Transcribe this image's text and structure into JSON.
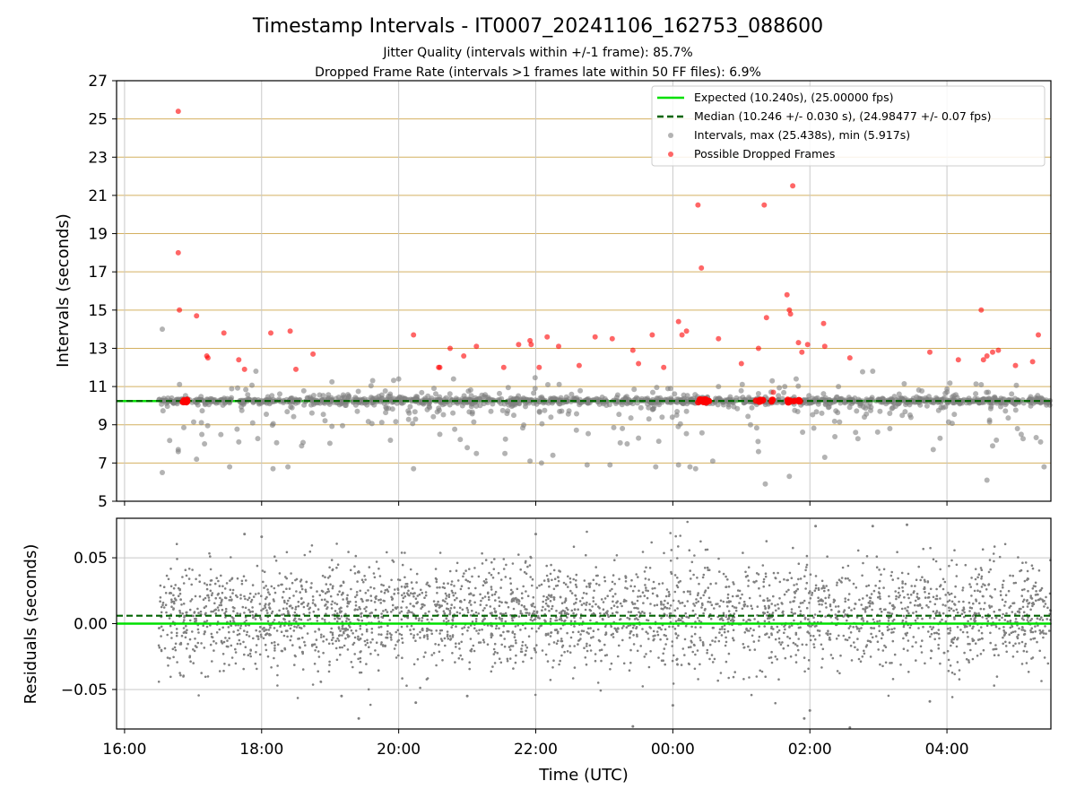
{
  "chart_data": [
    {
      "type": "scatter",
      "title": "Timestamp Intervals - IT0007_20241106_162753_088600",
      "subtitle_lines": [
        "Jitter Quality (intervals within +/-1 frame): 85.7%",
        "Dropped Frame Rate (intervals >1 frames late within 50 FF files): 6.9%"
      ],
      "xlabel": "",
      "ylabel": "Intervals (seconds)",
      "xlim": [
        "15:53",
        "05:31"
      ],
      "ylim": [
        5,
        27
      ],
      "yticks": [
        5,
        7,
        9,
        11,
        13,
        15,
        17,
        19,
        21,
        23,
        25,
        27
      ],
      "xticks": [
        "16:00",
        "18:00",
        "20:00",
        "22:00",
        "00:00",
        "02:00",
        "04:00"
      ],
      "grid": true,
      "legend_position": "top-right",
      "colors": {
        "expected": "#00e000",
        "median": "#006400",
        "intervals": "#808080",
        "dropped": "#ff0000",
        "hgrid": "#d4b060",
        "vgrid": "#c8c8c8"
      },
      "series": [
        {
          "name": "Expected (10.240s), (25.00000 fps)",
          "kind": "hline",
          "y": 10.24
        },
        {
          "name": "Median (10.246 +/- 0.030 s), (24.98477 +/- 0.07 fps)",
          "kind": "hline-dashed",
          "y": 10.246
        },
        {
          "name": "Intervals, max (25.438s), min (5.917s)",
          "kind": "points",
          "max": 25.438,
          "min": 5.917,
          "notable_points": [
            [
              "16:33",
              14.0
            ],
            [
              "16:33",
              6.5
            ],
            [
              "16:47",
              7.6
            ],
            [
              "16:47",
              7.7
            ],
            [
              "17:03",
              7.2
            ],
            [
              "17:10",
              8.0
            ],
            [
              "17:32",
              6.8
            ],
            [
              "17:40",
              8.1
            ],
            [
              "17:55",
              11.8
            ],
            [
              "18:10",
              6.7
            ],
            [
              "18:23",
              6.8
            ],
            [
              "18:35",
              7.9
            ],
            [
              "20:00",
              11.4
            ],
            [
              "20:13",
              6.7
            ],
            [
              "20:36",
              8.5
            ],
            [
              "20:48",
              11.4
            ],
            [
              "21:00",
              7.8
            ],
            [
              "21:08",
              7.5
            ],
            [
              "21:33",
              7.5
            ],
            [
              "21:55",
              7.1
            ],
            [
              "22:05",
              7.0
            ],
            [
              "22:15",
              7.4
            ],
            [
              "22:45",
              6.9
            ],
            [
              "23:05",
              6.9
            ],
            [
              "23:20",
              8.0
            ],
            [
              "23:30",
              8.3
            ],
            [
              "23:45",
              6.8
            ],
            [
              "23:58",
              10.9
            ],
            [
              "00:05",
              6.9
            ],
            [
              "00:15",
              6.8
            ],
            [
              "00:20",
              6.7
            ],
            [
              "00:35",
              7.1
            ],
            [
              "00:40",
              11.0
            ],
            [
              "01:08",
              9.0
            ],
            [
              "01:15",
              7.6
            ],
            [
              "01:21",
              5.9
            ],
            [
              "01:27",
              11.3
            ],
            [
              "01:38",
              11.0
            ],
            [
              "01:42",
              6.3
            ],
            [
              "01:48",
              11.4
            ],
            [
              "02:13",
              7.3
            ],
            [
              "02:25",
              11.0
            ],
            [
              "02:40",
              8.6
            ],
            [
              "02:55",
              11.8
            ],
            [
              "03:10",
              8.8
            ],
            [
              "03:48",
              7.7
            ],
            [
              "04:30",
              11.1
            ],
            [
              "04:35",
              6.1
            ],
            [
              "04:40",
              7.9
            ],
            [
              "05:05",
              8.5
            ],
            [
              "05:22",
              8.1
            ],
            [
              "05:25",
              6.8
            ]
          ]
        },
        {
          "name": "Possible Dropped Frames",
          "kind": "points",
          "values": [
            [
              "16:47",
              25.4
            ],
            [
              "16:47",
              18.0
            ],
            [
              "16:48",
              15.0
            ],
            [
              "17:03",
              14.7
            ],
            [
              "17:12",
              12.6
            ],
            [
              "17:13",
              12.5
            ],
            [
              "17:27",
              13.8
            ],
            [
              "17:40",
              12.4
            ],
            [
              "17:45",
              11.9
            ],
            [
              "18:08",
              13.8
            ],
            [
              "18:25",
              13.9
            ],
            [
              "18:30",
              11.9
            ],
            [
              "18:45",
              12.7
            ],
            [
              "20:13",
              13.7
            ],
            [
              "20:35",
              12.0
            ],
            [
              "20:36",
              12.0
            ],
            [
              "20:45",
              13.0
            ],
            [
              "20:57",
              12.6
            ],
            [
              "21:08",
              13.1
            ],
            [
              "21:32",
              12.0
            ],
            [
              "21:45",
              13.2
            ],
            [
              "21:55",
              13.4
            ],
            [
              "21:56",
              13.2
            ],
            [
              "22:03",
              12.0
            ],
            [
              "22:10",
              13.6
            ],
            [
              "22:20",
              13.1
            ],
            [
              "22:38",
              12.1
            ],
            [
              "22:52",
              13.6
            ],
            [
              "23:07",
              13.5
            ],
            [
              "23:25",
              12.9
            ],
            [
              "23:30",
              12.2
            ],
            [
              "23:42",
              13.7
            ],
            [
              "23:52",
              12.0
            ],
            [
              "00:05",
              14.4
            ],
            [
              "00:08",
              13.7
            ],
            [
              "00:12",
              13.9
            ],
            [
              "00:22",
              20.5
            ],
            [
              "00:25",
              17.2
            ],
            [
              "00:40",
              13.5
            ],
            [
              "01:00",
              12.2
            ],
            [
              "01:15",
              13.0
            ],
            [
              "01:20",
              20.5
            ],
            [
              "01:22",
              14.6
            ],
            [
              "01:28",
              10.7
            ],
            [
              "01:40",
              15.8
            ],
            [
              "01:42",
              15.0
            ],
            [
              "01:43",
              14.8
            ],
            [
              "01:45",
              21.5
            ],
            [
              "01:50",
              13.3
            ],
            [
              "01:53",
              12.8
            ],
            [
              "01:58",
              13.2
            ],
            [
              "02:12",
              14.3
            ],
            [
              "02:13",
              13.1
            ],
            [
              "02:35",
              12.5
            ],
            [
              "03:45",
              12.8
            ],
            [
              "04:10",
              12.4
            ],
            [
              "04:30",
              15.0
            ],
            [
              "04:32",
              12.4
            ],
            [
              "04:35",
              12.6
            ],
            [
              "04:40",
              12.8
            ],
            [
              "04:45",
              12.9
            ],
            [
              "05:00",
              12.1
            ],
            [
              "05:15",
              12.3
            ],
            [
              "05:20",
              13.7
            ]
          ]
        }
      ]
    },
    {
      "type": "scatter",
      "xlabel": "Time (UTC)",
      "ylabel": "Residuals (seconds)",
      "ylim": [
        -0.08,
        0.08
      ],
      "yticks": [
        -0.05,
        0.0,
        0.05
      ],
      "ytick_labels": [
        "−0.05",
        "0.00",
        "0.05"
      ],
      "xticks": [
        "16:00",
        "18:00",
        "20:00",
        "22:00",
        "00:00",
        "02:00",
        "04:00"
      ],
      "xlim": [
        "15:53",
        "05:31"
      ],
      "grid": true,
      "series": [
        {
          "kind": "hline",
          "y": 0.0
        },
        {
          "kind": "hline-dashed",
          "y": 0.006
        },
        {
          "kind": "points",
          "approx_mean": 0.006,
          "approx_std": 0.02,
          "notable_points": [
            [
              "17:45",
              0.068
            ],
            [
              "18:00",
              0.066
            ],
            [
              "19:10",
              -0.055
            ],
            [
              "19:25",
              -0.072
            ],
            [
              "20:15",
              -0.06
            ],
            [
              "21:00",
              -0.055
            ],
            [
              "22:00",
              0.068
            ],
            [
              "23:25",
              -0.078
            ],
            [
              "00:00",
              -0.062
            ],
            [
              "01:55",
              -0.072
            ],
            [
              "02:00",
              -0.066
            ],
            [
              "02:05",
              0.074
            ],
            [
              "02:35",
              -0.082
            ],
            [
              "02:55",
              0.074
            ],
            [
              "03:25",
              0.075
            ],
            [
              "03:45",
              -0.059
            ]
          ]
        }
      ]
    }
  ]
}
